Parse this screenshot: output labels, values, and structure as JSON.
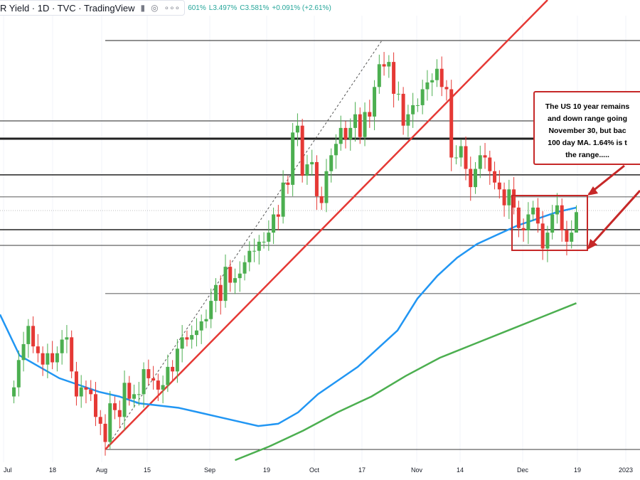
{
  "header": {
    "title": "R Yield · 1D · TVC · TradingView",
    "ohlc_partial": "601%",
    "low": "L3.497%",
    "close": "C3.581%",
    "change": "+0.091% (+2.61%)",
    "icons": [
      "flag-icon",
      "eye-icon",
      "more-icon"
    ]
  },
  "annotation": {
    "lines": [
      "The US 10 year remains",
      "and down range going",
      "November 30, but bac",
      "100 day MA.  1.64% is t",
      "the range....."
    ]
  },
  "chart_data": {
    "type": "candlestick",
    "title": "",
    "x_ticks": [
      "Jul",
      "18",
      "Aug",
      "15",
      "Sep",
      "19",
      "Oct",
      "17",
      "Nov",
      "14",
      "Dec",
      "19",
      "2023"
    ],
    "colors": {
      "up": "#4caf50",
      "down": "#e53935",
      "ma100": "#2196f3",
      "ma200": "#4caf50",
      "trendline": "#e53935",
      "box": "#c62828"
    },
    "closes_by_month": {
      "Jul": [
        2.81,
        2.93,
        3.0,
        3.08,
        2.99,
        2.96,
        2.91,
        2.96,
        2.92,
        2.96,
        3.02,
        3.03,
        2.88,
        2.77,
        2.81,
        2.8,
        2.78,
        2.68,
        2.65
      ],
      "Aug": [
        2.57,
        2.74,
        2.71,
        2.68,
        2.83,
        2.76,
        2.78,
        2.78,
        2.89,
        2.85,
        2.84,
        2.8,
        2.82,
        2.9,
        2.88,
        2.98,
        3.03,
        3.02,
        3.04,
        3.06,
        3.1,
        3.11,
        3.19
      ],
      "Sep": [
        3.26,
        3.19,
        3.34,
        3.27,
        3.29,
        3.31,
        3.36,
        3.41,
        3.41,
        3.45,
        3.45,
        3.49,
        3.57,
        3.56,
        3.71,
        3.7,
        3.93,
        3.96,
        3.74,
        3.79,
        3.8
      ],
      "Oct": [
        3.65,
        3.62,
        3.76,
        3.83,
        3.88,
        3.95,
        3.9,
        3.95,
        4.01,
        3.91,
        4.02,
        4.0,
        4.13,
        4.23,
        4.22,
        4.24,
        4.1,
        4.1,
        3.96,
        4.01,
        4.05
      ],
      "Nov": [
        4.05,
        4.12,
        4.15,
        4.16,
        4.21,
        4.13,
        4.12,
        3.82,
        3.82,
        3.87,
        3.77,
        3.69,
        3.77,
        3.83,
        3.82,
        3.76,
        3.71,
        3.68,
        3.61,
        3.68,
        3.6
      ],
      "Dec": [
        3.51,
        3.5,
        3.57,
        3.6,
        3.53,
        3.42,
        3.49,
        3.57,
        3.61,
        3.5,
        3.45,
        3.49,
        3.58
      ]
    },
    "last_bar": {
      "low": 3.497,
      "close": 3.581,
      "change": 0.091,
      "change_pct": 2.61
    },
    "horizontal_levels": [
      4.334,
      3.981,
      3.903,
      3.744,
      3.647,
      3.587,
      3.503,
      3.434,
      3.222,
      2.537
    ],
    "ma100": [
      3.13,
      2.95,
      2.9,
      2.85,
      2.82,
      2.79,
      2.77,
      2.74,
      2.73,
      2.72,
      2.7,
      2.68,
      2.66,
      2.64,
      2.65,
      2.7,
      2.78,
      2.84,
      2.9,
      2.98,
      3.06,
      3.2,
      3.3,
      3.38,
      3.44,
      3.48,
      3.52,
      3.55,
      3.58,
      3.6
    ],
    "ma200": [
      2.49,
      2.55,
      2.62,
      2.7,
      2.77,
      2.86,
      2.94,
      3.0,
      3.06,
      3.12,
      3.18
    ],
    "ma200_start_month": "Sep"
  }
}
